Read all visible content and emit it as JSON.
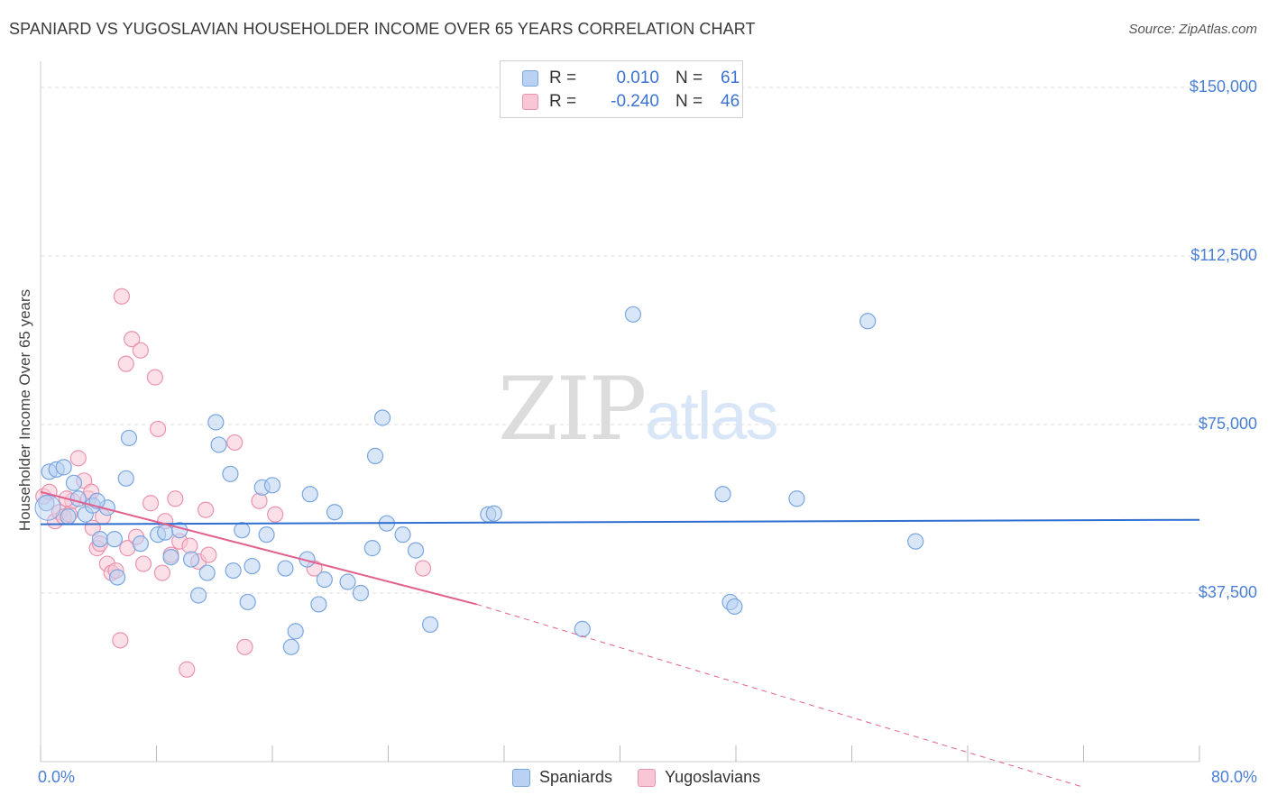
{
  "header": {
    "title": "SPANIARD VS YUGOSLAVIAN HOUSEHOLDER INCOME OVER 65 YEARS CORRELATION CHART",
    "source": "Source: ZipAtlas.com"
  },
  "watermark": {
    "zip": "ZIP",
    "atlas": "atlas"
  },
  "legend": {
    "rows": [
      {
        "r_label": "R =",
        "r_value": "0.010",
        "n_label": "N =",
        "n_value": "61"
      },
      {
        "r_label": "R =",
        "r_value": "-0.240",
        "n_label": "N =",
        "n_value": "46"
      }
    ]
  },
  "bottom_legend": {
    "series1": "Spaniards",
    "series2": "Yugoslavians"
  },
  "colors": {
    "spaniards_fill": "#b9d2f3",
    "spaniards_stroke": "#7aa6e0",
    "spaniards_line": "#2f6fcf",
    "yugoslavians_fill": "#f8c6d5",
    "yugoslavians_stroke": "#ea93b0",
    "yugoslavians_line": "#e0628f",
    "axis_label": "#4a7fd4",
    "grid": "#dedede"
  },
  "chart_data": {
    "type": "scatter",
    "title": "SPANIARD VS YUGOSLAVIAN HOUSEHOLDER INCOME OVER 65 YEARS CORRELATION CHART",
    "xlabel": "",
    "ylabel": "Householder Income Over 65 years",
    "xlim": [
      0,
      80
    ],
    "ylim": [
      0,
      150000
    ],
    "x_tick_labels": [
      "0.0%",
      "80.0%"
    ],
    "y_tick_labels": [
      "$37,500",
      "$75,000",
      "$112,500",
      "$150,000"
    ],
    "y_ticks": [
      37500,
      75000,
      112500,
      150000
    ],
    "grid": "horizontal dashed",
    "legend_position": "top-center",
    "series": [
      {
        "name": "Spaniards",
        "r": 0.01,
        "n": 61,
        "trend": {
          "x0": 0,
          "y0": 52800,
          "x1": 80,
          "y1": 53800,
          "dashed_from": null
        },
        "points": [
          [
            0.4,
            57500
          ],
          [
            0.6,
            64500
          ],
          [
            1.1,
            65000
          ],
          [
            1.6,
            65500
          ],
          [
            2.3,
            62000
          ],
          [
            2.6,
            58500
          ],
          [
            3.1,
            55000
          ],
          [
            3.6,
            57000
          ],
          [
            4.1,
            49500
          ],
          [
            4.6,
            56500
          ],
          [
            5.1,
            49500
          ],
          [
            5.3,
            41000
          ],
          [
            5.9,
            63000
          ],
          [
            6.1,
            72000
          ],
          [
            8.1,
            50500
          ],
          [
            8.6,
            51000
          ],
          [
            9.0,
            45500
          ],
          [
            9.6,
            51500
          ],
          [
            10.4,
            45000
          ],
          [
            10.9,
            37000
          ],
          [
            11.5,
            42000
          ],
          [
            12.1,
            75500
          ],
          [
            12.3,
            70500
          ],
          [
            13.1,
            64000
          ],
          [
            13.3,
            42500
          ],
          [
            13.9,
            51500
          ],
          [
            14.3,
            35500
          ],
          [
            14.6,
            43500
          ],
          [
            15.3,
            61000
          ],
          [
            15.6,
            50500
          ],
          [
            16.0,
            61500
          ],
          [
            16.9,
            43000
          ],
          [
            17.3,
            25500
          ],
          [
            17.6,
            29000
          ],
          [
            18.4,
            45000
          ],
          [
            18.6,
            59500
          ],
          [
            19.2,
            35000
          ],
          [
            19.6,
            40500
          ],
          [
            20.3,
            55500
          ],
          [
            21.2,
            40000
          ],
          [
            22.1,
            37500
          ],
          [
            22.9,
            47500
          ],
          [
            23.1,
            68000
          ],
          [
            23.6,
            76500
          ],
          [
            23.9,
            53000
          ],
          [
            25.0,
            50500
          ],
          [
            25.9,
            47000
          ],
          [
            26.9,
            30500
          ],
          [
            30.9,
            55000
          ],
          [
            31.3,
            55200
          ],
          [
            37.4,
            29500
          ],
          [
            40.9,
            99500
          ],
          [
            47.1,
            59500
          ],
          [
            47.6,
            35500
          ],
          [
            47.9,
            34500
          ],
          [
            52.2,
            58500
          ],
          [
            57.1,
            98000
          ],
          [
            60.4,
            49000
          ],
          [
            1.9,
            54500
          ],
          [
            3.9,
            58000
          ],
          [
            6.9,
            48500
          ]
        ]
      },
      {
        "name": "Yugoslavians",
        "r": -0.24,
        "n": 46,
        "trend": {
          "x0": 0,
          "y0": 60000,
          "x1": 30.1,
          "y1": 35000,
          "dashed_from": 30.1,
          "dash_x1": 71.8,
          "dash_y1": -5500
        },
        "points": [
          [
            0.2,
            59000
          ],
          [
            0.6,
            60000
          ],
          [
            1.0,
            53500
          ],
          [
            1.3,
            55500
          ],
          [
            1.6,
            54500
          ],
          [
            2.0,
            55000
          ],
          [
            2.2,
            58000
          ],
          [
            2.6,
            67500
          ],
          [
            3.0,
            62500
          ],
          [
            3.3,
            58500
          ],
          [
            3.6,
            52000
          ],
          [
            3.9,
            47500
          ],
          [
            4.1,
            48500
          ],
          [
            4.3,
            54500
          ],
          [
            4.6,
            44000
          ],
          [
            4.9,
            42000
          ],
          [
            5.2,
            42500
          ],
          [
            5.6,
            103500
          ],
          [
            5.9,
            88500
          ],
          [
            6.0,
            47500
          ],
          [
            6.3,
            94000
          ],
          [
            6.9,
            91500
          ],
          [
            7.1,
            44000
          ],
          [
            7.6,
            57500
          ],
          [
            7.9,
            85500
          ],
          [
            8.1,
            74000
          ],
          [
            8.6,
            53500
          ],
          [
            9.0,
            46000
          ],
          [
            9.3,
            58500
          ],
          [
            9.6,
            49000
          ],
          [
            10.1,
            20500
          ],
          [
            10.3,
            48000
          ],
          [
            10.9,
            44500
          ],
          [
            11.4,
            56000
          ],
          [
            11.6,
            46000
          ],
          [
            13.4,
            71000
          ],
          [
            14.1,
            25500
          ],
          [
            15.1,
            58000
          ],
          [
            16.2,
            55000
          ],
          [
            18.9,
            43000
          ],
          [
            26.4,
            43000
          ],
          [
            8.4,
            42000
          ],
          [
            5.5,
            27000
          ],
          [
            1.8,
            58500
          ],
          [
            3.5,
            60000
          ],
          [
            6.6,
            50000
          ]
        ]
      }
    ]
  }
}
